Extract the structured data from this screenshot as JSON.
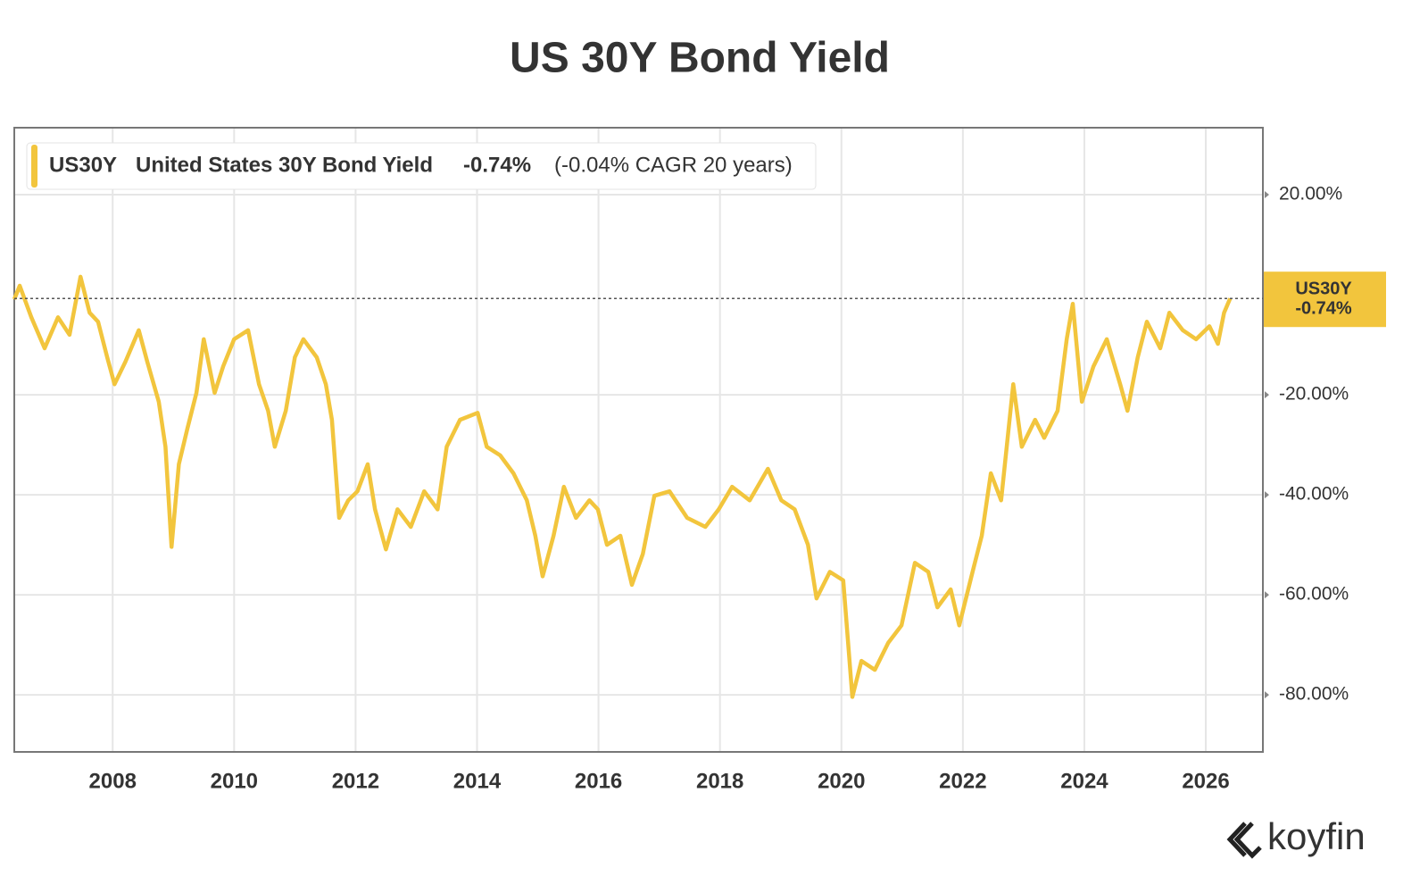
{
  "chart_data": {
    "type": "line",
    "title": "US 30Y Bond Yield",
    "legend": {
      "ticker": "US30Y",
      "change": "-0.74%",
      "cagr": "(-0.04% CAGR 20 years)"
    },
    "brand": "koyfin",
    "xlim": [
      2006.38,
      2026.94
    ],
    "ylim": [
      -91.4,
      33.4
    ],
    "xticks": [
      2008,
      2010,
      2012,
      2014,
      2016,
      2018,
      2020,
      2022,
      2024,
      2026
    ],
    "yticks": [
      {
        "value": 20,
        "label": "20.00%"
      },
      {
        "value": -20,
        "label": "-20.00%"
      },
      {
        "value": -40,
        "label": "-40.00%"
      },
      {
        "value": -60,
        "label": "-60.00%"
      },
      {
        "value": -80,
        "label": "-80.00%"
      }
    ],
    "grid": true,
    "x": [
      2006.38,
      2006.47,
      2006.66,
      2006.88,
      2007.1,
      2007.29,
      2007.47,
      2007.62,
      2007.76,
      2007.91,
      2008.03,
      2008.21,
      2008.43,
      2008.57,
      2008.76,
      2008.87,
      2008.97,
      2009.09,
      2009.23,
      2009.38,
      2009.5,
      2009.68,
      2009.82,
      2010.0,
      2010.23,
      2010.41,
      2010.56,
      2010.67,
      2010.85,
      2011.0,
      2011.14,
      2011.36,
      2011.51,
      2011.61,
      2011.73,
      2011.88,
      2012.03,
      2012.2,
      2012.32,
      2012.5,
      2012.69,
      2012.91,
      2013.13,
      2013.35,
      2013.5,
      2013.72,
      2014.01,
      2014.16,
      2014.38,
      2014.6,
      2014.82,
      2014.96,
      2015.08,
      2015.26,
      2015.43,
      2015.63,
      2015.85,
      2015.99,
      2016.14,
      2016.36,
      2016.55,
      2016.73,
      2016.92,
      2017.17,
      2017.46,
      2017.76,
      2017.98,
      2018.2,
      2018.49,
      2018.79,
      2019.01,
      2019.23,
      2019.45,
      2019.59,
      2019.81,
      2020.03,
      2020.18,
      2020.33,
      2020.55,
      2020.77,
      2020.99,
      2021.21,
      2021.43,
      2021.58,
      2021.8,
      2021.94,
      2022.16,
      2022.31,
      2022.46,
      2022.63,
      2022.83,
      2022.97,
      2023.19,
      2023.34,
      2023.56,
      2023.71,
      2023.81,
      2023.96,
      2024.15,
      2024.37,
      2024.59,
      2024.71,
      2024.88,
      2025.03,
      2025.25,
      2025.4,
      2025.62,
      2025.84,
      2026.06,
      2026.2,
      2026.3,
      2026.4
    ],
    "series": [
      {
        "name": "United States 30Y Bond Yield",
        "color": "#f2c53d",
        "values": [
          -0.9,
          1.8,
          -4.5,
          -10.7,
          -4.5,
          -8.0,
          3.6,
          -3.6,
          -5.4,
          -12.5,
          -17.9,
          -13.4,
          -7.1,
          -13.4,
          -21.4,
          -30.4,
          -50.4,
          -33.9,
          -26.8,
          -19.6,
          -8.9,
          -19.6,
          -14.3,
          -8.9,
          -7.1,
          -17.9,
          -23.2,
          -30.4,
          -23.2,
          -12.5,
          -8.9,
          -12.5,
          -17.9,
          -25.0,
          -44.6,
          -41.1,
          -39.3,
          -33.9,
          -42.9,
          -50.9,
          -42.9,
          -46.4,
          -39.3,
          -42.9,
          -30.4,
          -25.0,
          -23.6,
          -30.4,
          -32.1,
          -35.7,
          -41.1,
          -48.2,
          -56.3,
          -48.2,
          -38.4,
          -44.6,
          -41.1,
          -42.9,
          -50.0,
          -48.2,
          -58.0,
          -51.8,
          -40.2,
          -39.3,
          -44.6,
          -46.4,
          -42.9,
          -38.4,
          -41.1,
          -34.8,
          -41.1,
          -42.9,
          -50.0,
          -60.7,
          -55.4,
          -57.1,
          -80.4,
          -73.2,
          -75.0,
          -69.6,
          -66.1,
          -53.6,
          -55.4,
          -62.5,
          -58.9,
          -66.1,
          -55.4,
          -48.2,
          -35.7,
          -41.1,
          -17.9,
          -30.4,
          -25.0,
          -28.6,
          -23.2,
          -8.9,
          -1.8,
          -21.4,
          -14.3,
          -8.9,
          -17.9,
          -23.2,
          -12.5,
          -5.4,
          -10.7,
          -3.6,
          -7.1,
          -8.9,
          -6.3,
          -9.8,
          -3.6,
          -0.74
        ]
      }
    ]
  }
}
